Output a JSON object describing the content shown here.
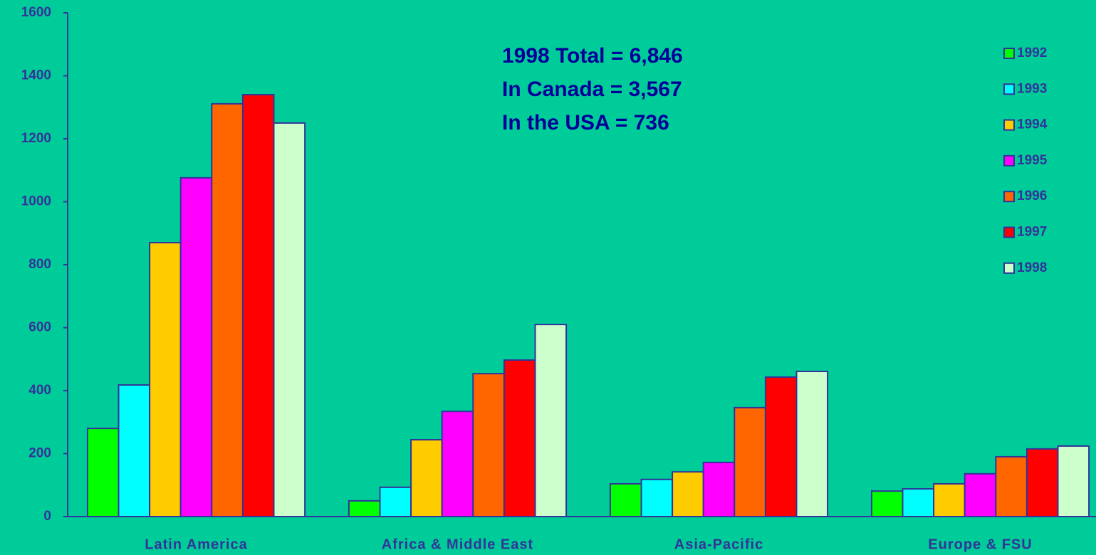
{
  "chart_data": {
    "type": "bar",
    "categories": [
      "Latin America",
      "Africa & Middle East",
      "Asia-Pacific",
      "Europe & FSU"
    ],
    "series": [
      {
        "name": "1992",
        "color": "#00ff00",
        "values": [
          280,
          50,
          104,
          81
        ]
      },
      {
        "name": "1993",
        "color": "#00ffff",
        "values": [
          418,
          93,
          118,
          88
        ]
      },
      {
        "name": "1994",
        "color": "#ffcc00",
        "values": [
          870,
          244,
          142,
          104
        ]
      },
      {
        "name": "1995",
        "color": "#ff00ff",
        "values": [
          1076,
          334,
          172,
          136
        ]
      },
      {
        "name": "1996",
        "color": "#ff6600",
        "values": [
          1311,
          454,
          346,
          190
        ]
      },
      {
        "name": "1997",
        "color": "#ff0000",
        "values": [
          1340,
          497,
          443,
          215
        ]
      },
      {
        "name": "1998",
        "color": "#ccffcc",
        "values": [
          1250,
          610,
          461,
          224
        ]
      }
    ],
    "annotations": [
      "1998 Total = 6,846",
      "In Canada = 3,567",
      "In the USA = 736"
    ],
    "ylim": [
      0,
      1600
    ],
    "yticks": [
      0,
      200,
      400,
      600,
      800,
      1000,
      1200,
      1400,
      1600
    ],
    "grid": false,
    "legend": "right"
  }
}
